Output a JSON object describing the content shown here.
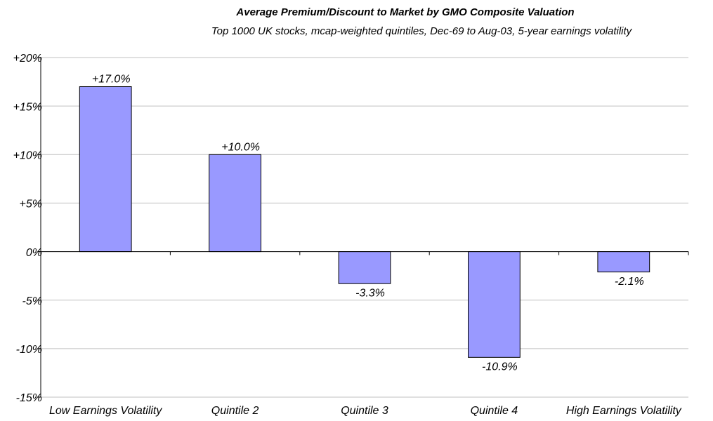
{
  "chart_data": {
    "type": "bar",
    "title": "Average Premium/Discount to Market by GMO Composite Valuation",
    "subtitle": "Top 1000 UK stocks, mcap-weighted quintiles, Dec-69 to Aug-03, 5-year earnings volatility",
    "categories": [
      "Low Earnings Volatility",
      "Quintile 2",
      "Quintile 3",
      "Quintile 4",
      "High Earnings Volatility"
    ],
    "values": [
      17.0,
      10.0,
      -3.3,
      -10.9,
      -2.1
    ],
    "value_labels": [
      "+17.0%",
      "+10.0%",
      "-3.3%",
      "-10.9%",
      "-2.1%"
    ],
    "color": "#9999ff",
    "ylim": [
      -15,
      20
    ],
    "yticks": [
      {
        "value": -15,
        "label": "-15%"
      },
      {
        "value": -10,
        "label": "-10%"
      },
      {
        "value": -5,
        "label": "-5%"
      },
      {
        "value": 0,
        "label": "0%"
      },
      {
        "value": 5,
        "label": "+5%"
      },
      {
        "value": 10,
        "label": "+10%"
      },
      {
        "value": 15,
        "label": "+15%"
      },
      {
        "value": 20,
        "label": "+20%"
      }
    ],
    "grid": true
  }
}
